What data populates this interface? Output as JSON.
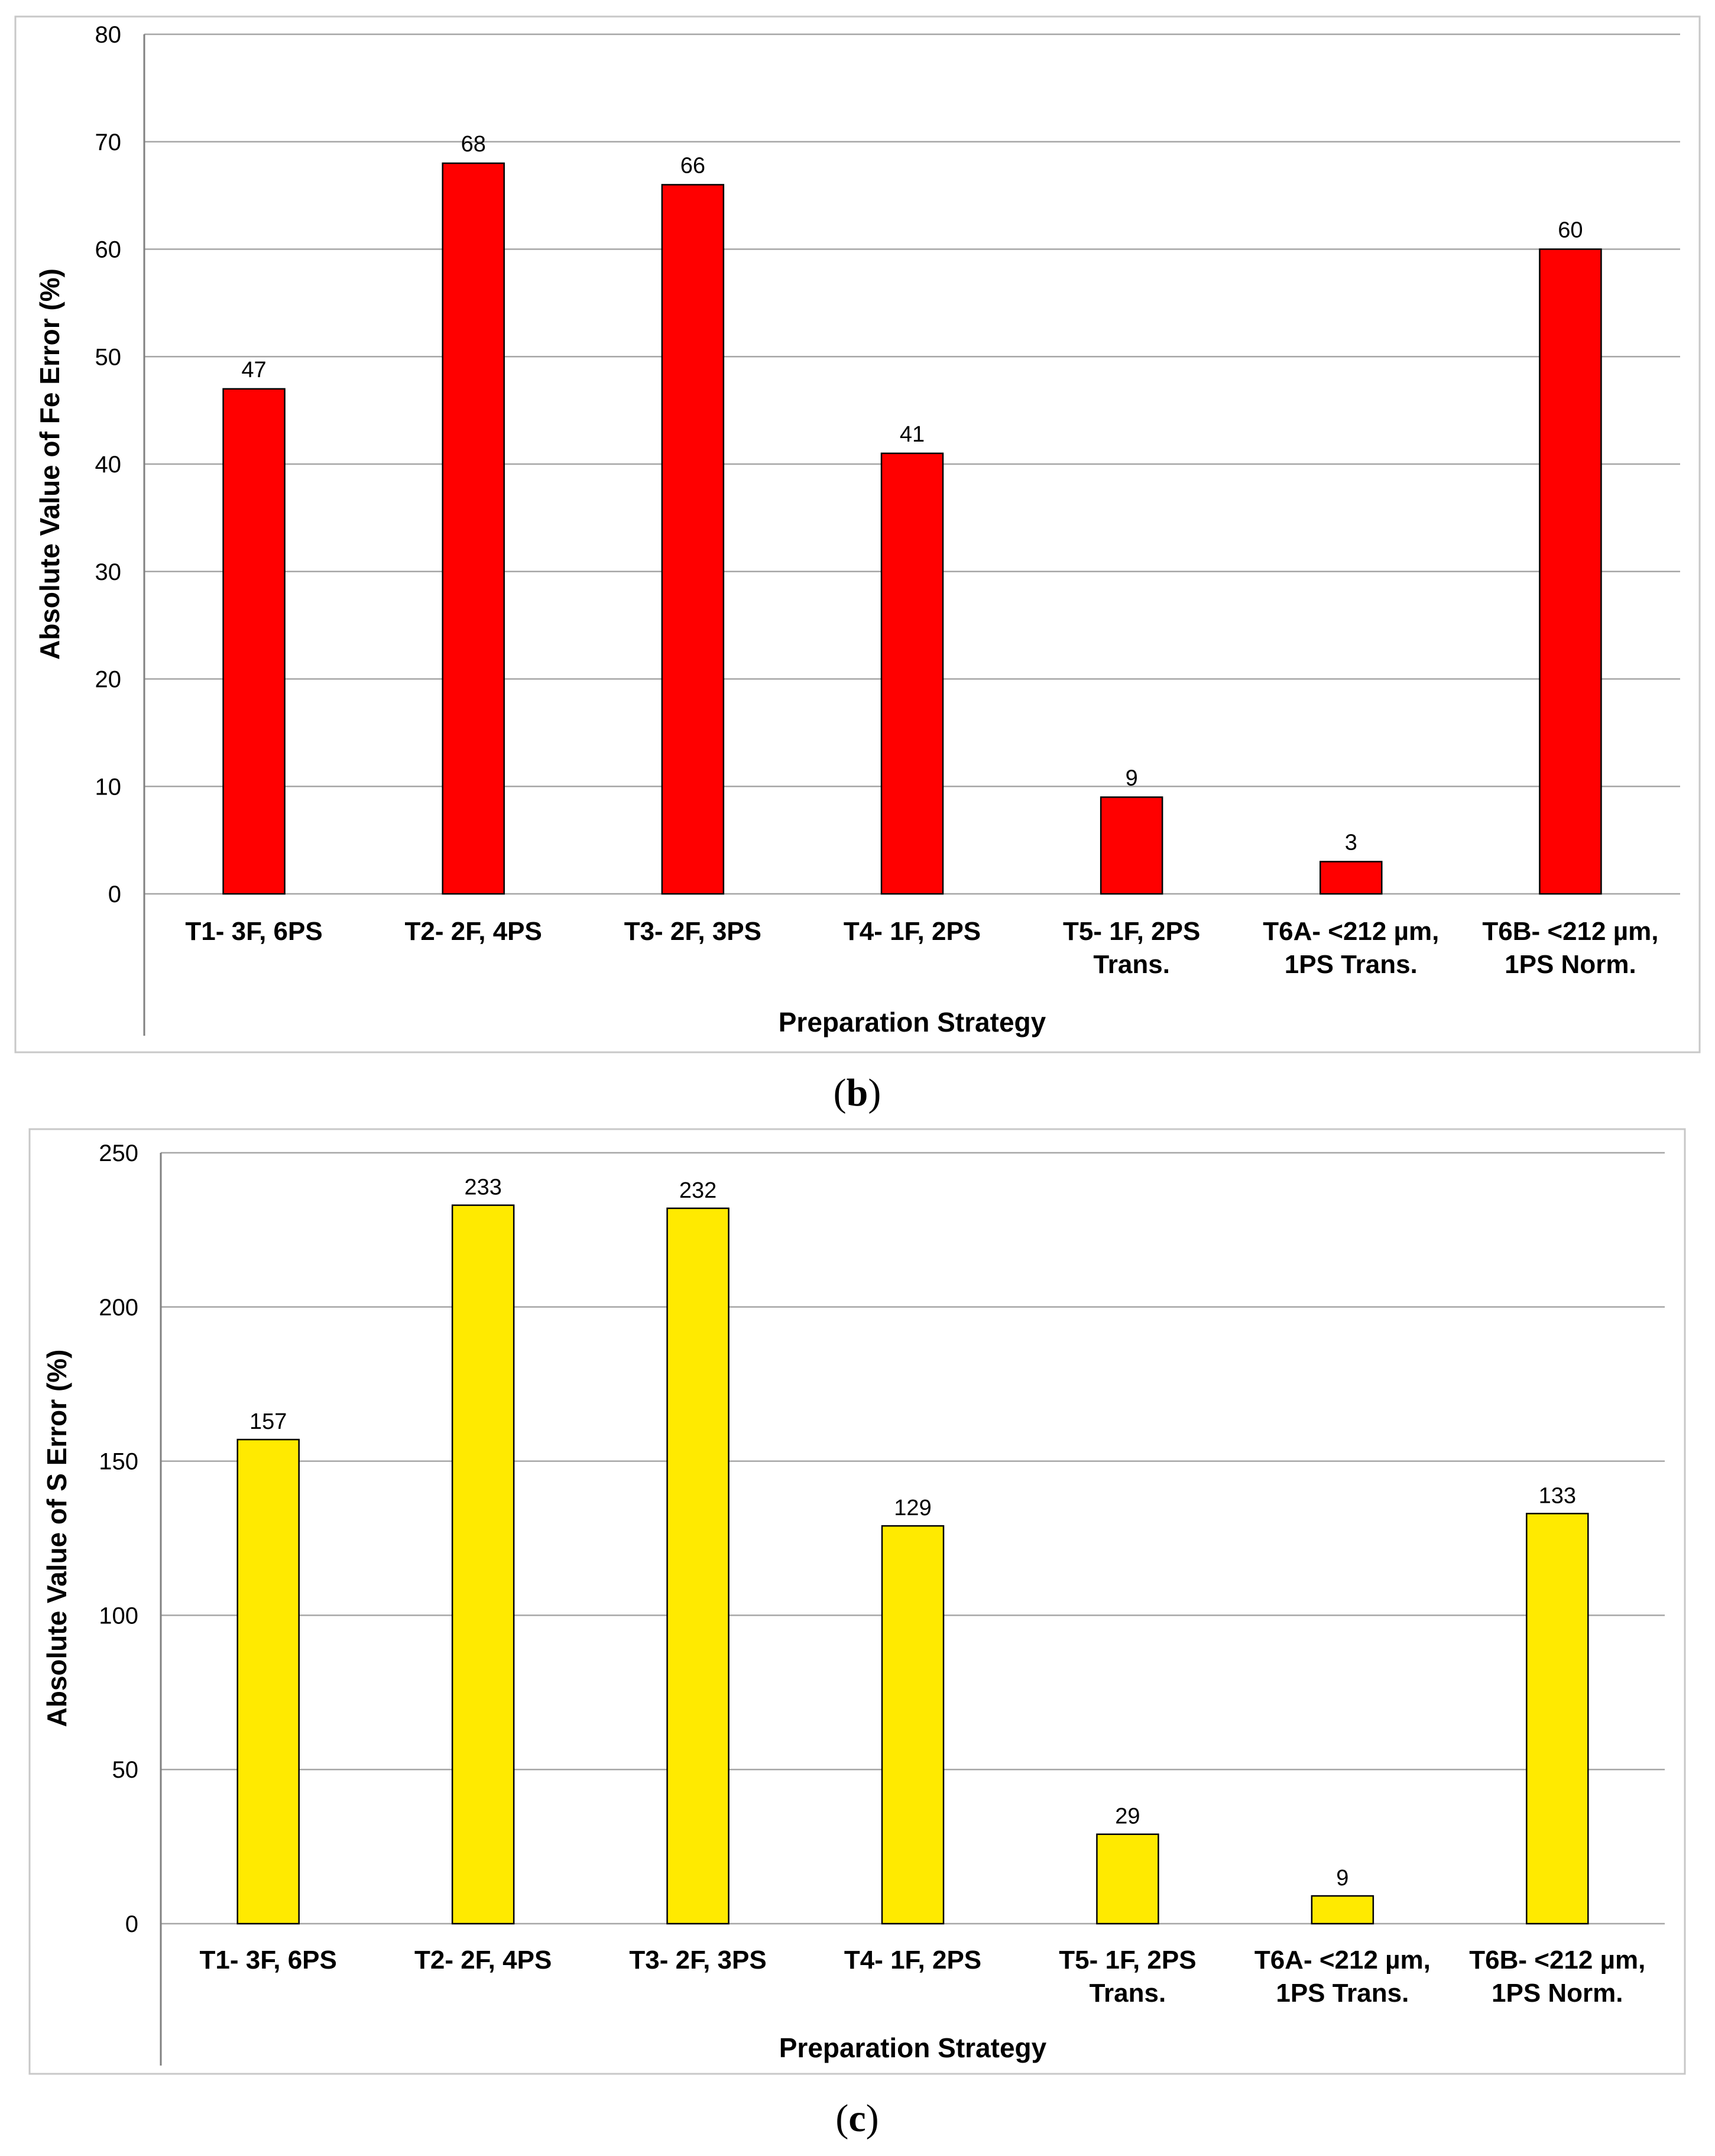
{
  "chart_data": [
    {
      "type": "bar",
      "panel": "b",
      "categories": [
        "T1- 3F, 6PS",
        "T2- 2F, 4PS",
        "T3- 2F, 3PS",
        "T4- 1F, 2PS",
        "T5- 1F, 2PS Trans.",
        "T6A- <212 µm, 1PS Trans.",
        "T6B- <212 µm, 1PS Norm."
      ],
      "category_lines": [
        [
          "T1- 3F, 6PS"
        ],
        [
          "T2- 2F, 4PS"
        ],
        [
          "T3- 2F, 3PS"
        ],
        [
          "T4- 1F, 2PS"
        ],
        [
          "T5- 1F, 2PS",
          "Trans."
        ],
        [
          "T6A- <212 µm,",
          "1PS Trans."
        ],
        [
          "T6B- <212 µm,",
          "1PS Norm."
        ]
      ],
      "values": [
        47,
        68,
        66,
        41,
        9,
        3,
        60
      ],
      "data_labels": [
        "47",
        "68",
        "66",
        "41",
        "9",
        "3",
        "60"
      ],
      "bar_color": "#ff0000",
      "xlabel": "Preparation Strategy",
      "ylabel": "Absolute Value of Fe Error (%)",
      "ylim": [
        0,
        80
      ],
      "yticks": [
        0,
        10,
        20,
        30,
        40,
        50,
        60,
        70,
        80
      ],
      "grid": true
    },
    {
      "type": "bar",
      "panel": "c",
      "categories": [
        "T1- 3F, 6PS",
        "T2- 2F, 4PS",
        "T3- 2F, 3PS",
        "T4- 1F, 2PS",
        "T5- 1F, 2PS Trans.",
        "T6A- <212 µm, 1PS Trans.",
        "T6B- <212 µm, 1PS Norm."
      ],
      "category_lines": [
        [
          "T1- 3F, 6PS"
        ],
        [
          "T2- 2F, 4PS"
        ],
        [
          "T3- 2F, 3PS"
        ],
        [
          "T4- 1F, 2PS"
        ],
        [
          "T5- 1F, 2PS",
          "Trans."
        ],
        [
          "T6A- <212 µm,",
          "1PS Trans."
        ],
        [
          "T6B- <212 µm,",
          "1PS Norm."
        ]
      ],
      "values": [
        157,
        233,
        232,
        129,
        29,
        9,
        133
      ],
      "data_labels": [
        "157",
        "233",
        "232",
        "129",
        "29",
        "9",
        "133"
      ],
      "bar_color": "#ffea00",
      "xlabel": "Preparation Strategy",
      "ylabel": "Absolute Value of S Error (%)",
      "ylim": [
        0,
        250
      ],
      "yticks": [
        0,
        50,
        100,
        150,
        200,
        250
      ],
      "grid": true
    }
  ],
  "panel_labels": {
    "b": {
      "open": "(",
      "letter": "b",
      "close": ")"
    },
    "c": {
      "open": "(",
      "letter": "c",
      "close": ")"
    }
  }
}
